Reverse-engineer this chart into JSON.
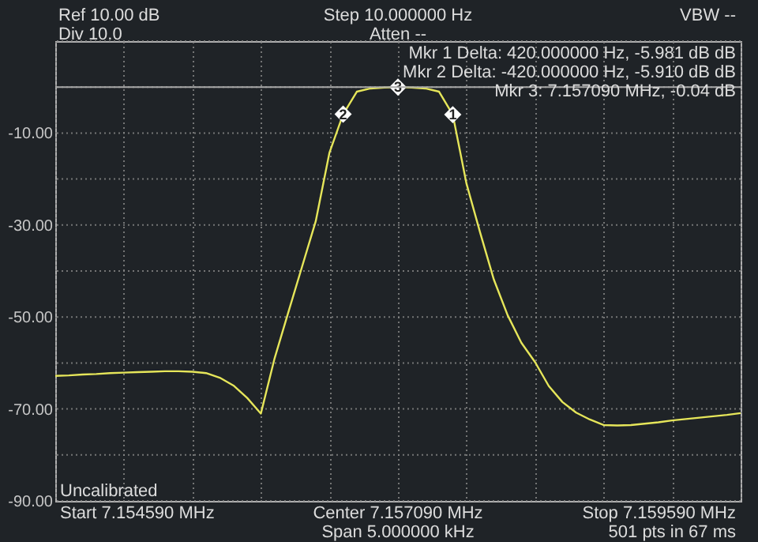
{
  "chart_data": {
    "type": "line",
    "annotations": [
      "Ref 10.00 dB",
      "Div 10.0",
      "Step 10.000000 Hz",
      "Atten --",
      "VBW --",
      "Mkr 1 Delta: 420.000000 Hz, -5.981 dB dB",
      "Mkr 2 Delta: -420.000000 Hz, -5.910 dB dB",
      "Mkr 3: 7.157090 MHz, -0.04 dB",
      "Uncalibrated",
      "Start 7.154590 MHz",
      "Center 7.157090 MHz",
      "Span 5.000000 kHz",
      "Stop 7.159590 MHz",
      "501 pts in 67 ms"
    ],
    "categories": [
      null,
      null,
      null,
      null,
      null,
      null,
      null,
      null,
      null,
      null,
      null,
      null,
      null,
      null,
      null,
      null,
      null,
      null,
      null,
      null,
      null,
      null,
      null,
      null,
      null,
      null,
      null,
      null,
      null,
      null,
      null,
      null,
      null,
      null,
      null,
      null,
      null,
      null,
      null,
      null,
      null,
      null,
      null,
      null,
      null,
      null,
      null,
      null,
      null,
      null,
      null
    ],
    "series": [
      {
        "color": "#e6e65a",
        "values": [
          -62.8,
          -62.7,
          -62.5,
          -62.4,
          -62.2,
          -62.1,
          -62.0,
          -61.9,
          -61.8,
          -61.8,
          -61.9,
          -62.2,
          -63.2,
          -64.9,
          -67.6,
          -71.0,
          -59.0,
          -49.0,
          -39.1,
          -29.2,
          -14.3,
          -5.9,
          -1.0,
          -0.3,
          -0.1,
          0.0,
          -0.1,
          -0.3,
          -1.0,
          -6.0,
          -21.0,
          -31.7,
          -41.9,
          -49.6,
          -55.6,
          -59.8,
          -65.0,
          -68.5,
          -70.8,
          -72.3,
          -73.5,
          -73.6,
          -73.5,
          -73.2,
          -72.9,
          -72.5,
          -72.2,
          -71.9,
          -71.6,
          -71.3,
          -70.9
        ]
      },
      {
        "type": "scatter",
        "name": "2",
        "marker": "diamond",
        "color": "#ffffff",
        "values": [
          null,
          null,
          null,
          null,
          null,
          null,
          null,
          null,
          null,
          null,
          null,
          null,
          null,
          null,
          null,
          null,
          null,
          null,
          null,
          null,
          null,
          -5.9,
          null,
          null,
          null,
          null,
          null,
          null,
          null,
          null,
          null,
          null,
          null,
          null,
          null,
          null,
          null,
          null,
          null,
          null,
          null,
          null,
          null,
          null,
          null,
          null,
          null,
          null,
          null,
          null,
          null
        ]
      },
      {
        "type": "scatter",
        "name": "3",
        "marker": "diamond",
        "color": "#ffffff",
        "values": [
          null,
          null,
          null,
          null,
          null,
          null,
          null,
          null,
          null,
          null,
          null,
          null,
          null,
          null,
          null,
          null,
          null,
          null,
          null,
          null,
          null,
          null,
          null,
          null,
          null,
          0.0,
          null,
          null,
          null,
          null,
          null,
          null,
          null,
          null,
          null,
          null,
          null,
          null,
          null,
          null,
          null,
          null,
          null,
          null,
          null,
          null,
          null,
          null,
          null,
          null,
          null
        ]
      },
      {
        "type": "scatter",
        "name": "1",
        "marker": "diamond",
        "color": "#ffffff",
        "values": [
          null,
          null,
          null,
          null,
          null,
          null,
          null,
          null,
          null,
          null,
          null,
          null,
          null,
          null,
          null,
          null,
          null,
          null,
          null,
          null,
          null,
          null,
          null,
          null,
          null,
          null,
          null,
          null,
          null,
          -6.0,
          null,
          null,
          null,
          null,
          null,
          null,
          null,
          null,
          null,
          null,
          null,
          null,
          null,
          null,
          null,
          null,
          null,
          null,
          null,
          null,
          null
        ]
      }
    ],
    "ylim": [
      -90,
      10
    ],
    "yticks": [
      {
        "value": -90,
        "label": "-90.00"
      },
      {
        "value": -80,
        "label": null
      },
      {
        "value": -70,
        "label": "-70.00"
      },
      {
        "value": -60,
        "label": null
      },
      {
        "value": -50,
        "label": "-50.00"
      },
      {
        "value": -40,
        "label": null
      },
      {
        "value": -30,
        "label": "-30.00"
      },
      {
        "value": -20,
        "label": null
      },
      {
        "value": -10,
        "label": "-10.00"
      },
      {
        "value": 0,
        "label": null
      },
      {
        "value": 10,
        "label": null
      }
    ],
    "ref_lines": [
      {
        "axis": "y",
        "value": 0,
        "color": "#a8a8a8"
      }
    ],
    "grid": true,
    "tick_labels": "y"
  }
}
